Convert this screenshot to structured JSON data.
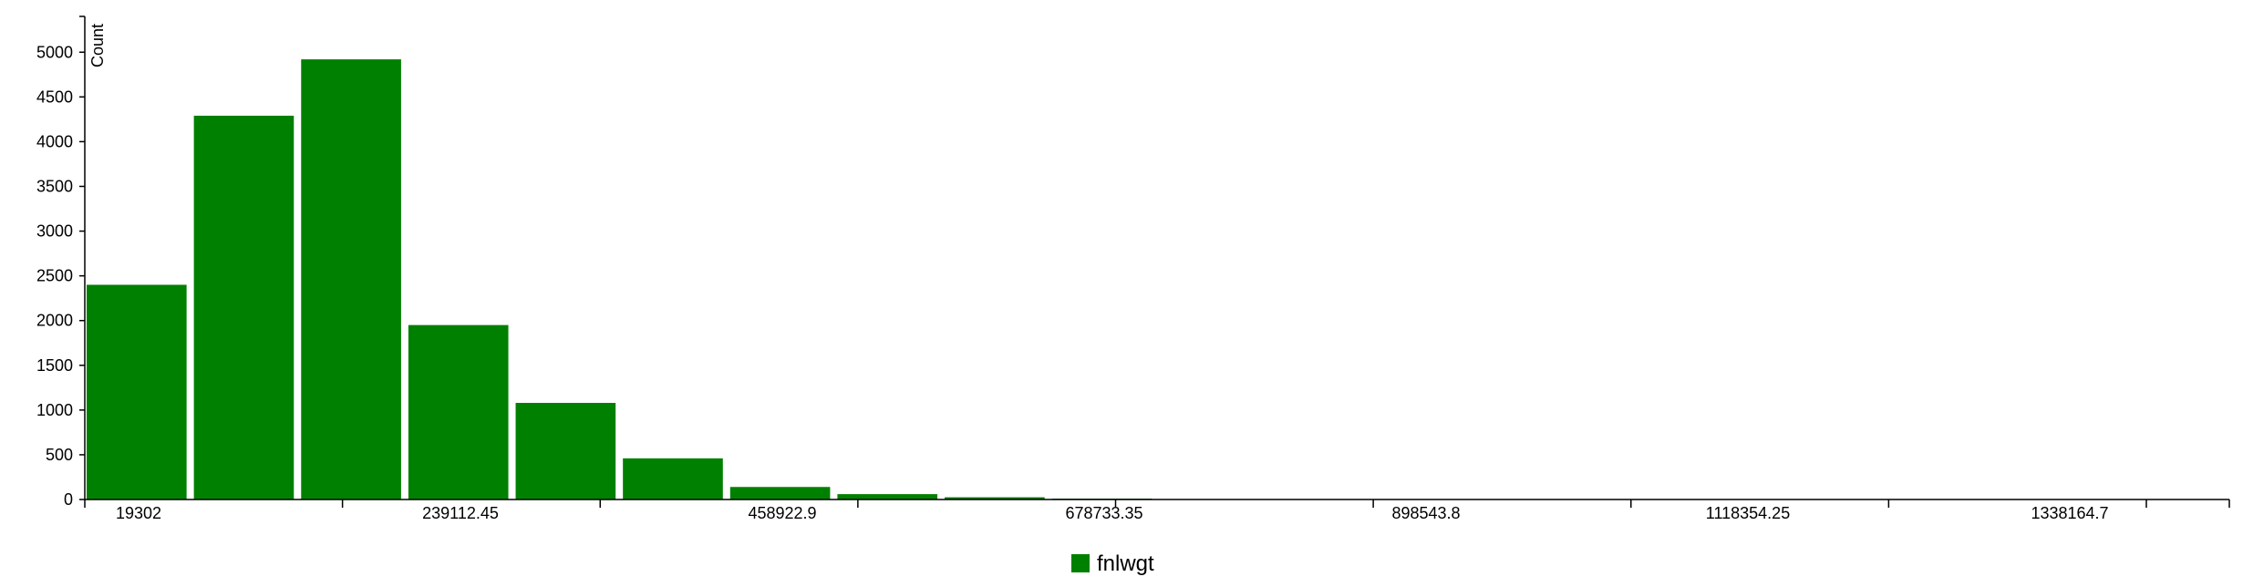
{
  "chart_data": {
    "type": "bar",
    "ylabel": "Count",
    "ylim": [
      0,
      5400
    ],
    "y_ticks": [
      0,
      500,
      1000,
      1500,
      2000,
      2500,
      3000,
      3500,
      4000,
      4500,
      5000
    ],
    "x_range": [
      19302,
      1484808
    ],
    "bin_edges": [
      19302,
      92597.5,
      165893,
      239188.5,
      312484,
      385779.5,
      459075,
      532370.5,
      605666,
      678961.5,
      752257,
      825552.5,
      898848,
      972143.5,
      1045439,
      1118734.5,
      1192030,
      1265325.5,
      1338621,
      1411916.5,
      1484808
    ],
    "values": [
      2400,
      4290,
      4920,
      1950,
      1080,
      460,
      140,
      60,
      25,
      10,
      0,
      0,
      0,
      0,
      0,
      0,
      0,
      0,
      0,
      0
    ],
    "x_tick_labels": [
      "19302",
      "239112.45",
      "458922.9",
      "678733.35",
      "898543.8",
      "1118354.25",
      "1338164.7"
    ],
    "series": [
      {
        "name": "fnlwgt",
        "color": "#008000"
      }
    ]
  }
}
